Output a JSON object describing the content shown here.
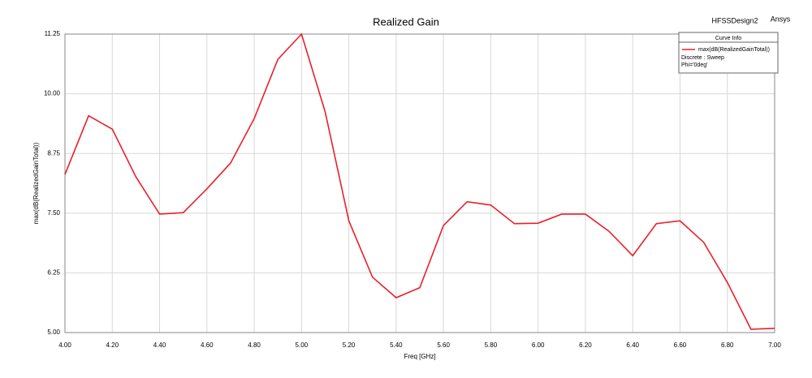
{
  "chart_data": {
    "type": "line",
    "title": "Realized Gain",
    "design_name": "HFSSDesign2",
    "brand": "Ansys",
    "x_label": "Freq [GHz]",
    "y_label": "max(dB(RealizedGainTotal))",
    "legend_title": "Curve Info",
    "legend_notes": [
      "Discrete : Sweep",
      "Phi='0deg'"
    ],
    "legend_position": "upper right",
    "grid": true,
    "x": [
      4.0,
      4.1,
      4.2,
      4.3,
      4.4,
      4.5,
      4.6,
      4.7,
      4.8,
      4.9,
      5.0,
      5.1,
      5.2,
      5.3,
      5.4,
      5.5,
      5.6,
      5.7,
      5.8,
      5.9,
      6.0,
      6.1,
      6.2,
      6.3,
      6.4,
      6.5,
      6.6,
      6.7,
      6.8,
      6.9,
      7.0
    ],
    "series": [
      {
        "name": "max(dB(RealizedGainTotal))",
        "color": "#e8202a",
        "values": [
          8.31,
          9.54,
          9.26,
          8.26,
          7.48,
          7.51,
          8.01,
          8.55,
          9.48,
          10.72,
          11.25,
          9.62,
          7.34,
          6.16,
          5.73,
          5.94,
          7.24,
          7.74,
          7.67,
          7.28,
          7.29,
          7.48,
          7.48,
          7.12,
          6.61,
          7.28,
          7.34,
          6.89,
          6.05,
          5.07,
          5.09
        ]
      }
    ],
    "xlim": [
      4.0,
      7.0
    ],
    "ylim": [
      5.0,
      11.25
    ],
    "xticks": [
      {
        "value": 4.0,
        "label": "4.00"
      },
      {
        "value": 4.2,
        "label": "4.20"
      },
      {
        "value": 4.4,
        "label": "4.40"
      },
      {
        "value": 4.6,
        "label": "4.60"
      },
      {
        "value": 4.8,
        "label": "4.80"
      },
      {
        "value": 5.0,
        "label": "5.00"
      },
      {
        "value": 5.2,
        "label": "5.20"
      },
      {
        "value": 5.4,
        "label": "5.40"
      },
      {
        "value": 5.6,
        "label": "5.60"
      },
      {
        "value": 5.8,
        "label": "5.80"
      },
      {
        "value": 6.0,
        "label": "6.00"
      },
      {
        "value": 6.2,
        "label": "6.20"
      },
      {
        "value": 6.4,
        "label": "6.40"
      },
      {
        "value": 6.6,
        "label": "6.60"
      },
      {
        "value": 6.8,
        "label": "6.80"
      },
      {
        "value": 7.0,
        "label": "7.00"
      }
    ],
    "yticks": [
      {
        "value": 5.0,
        "label": "5.00"
      },
      6.25,
      {
        "value": 7.5,
        "label": "7.50"
      },
      8.75,
      {
        "value": 10.0,
        "label": "10.00"
      },
      11.25
    ]
  }
}
